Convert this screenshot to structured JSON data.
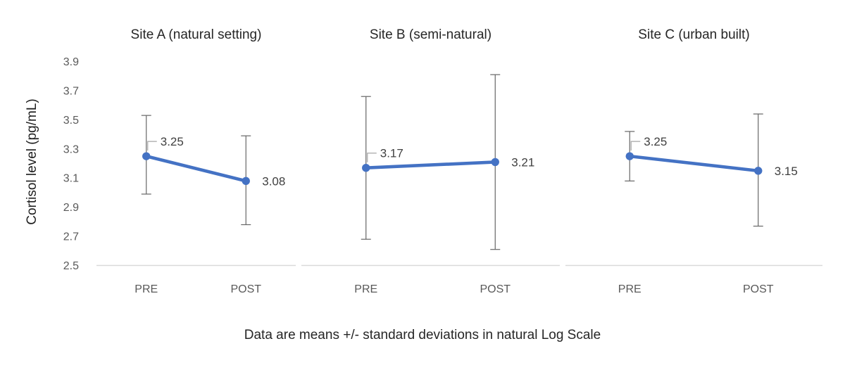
{
  "figure": {
    "y_axis_title": "Cortisol level (pg/mL)",
    "caption": "Data are means +/- standard deviations in natural Log Scale"
  },
  "chart_data": {
    "type": "line",
    "description": "Mean salivary cortisol (natural log scale) PRE vs POST with standard-deviation error bars, one panel per site",
    "ylabel": "Cortisol level (pg/mL)",
    "xlabel": "",
    "ylim": [
      2.5,
      3.9
    ],
    "ytick_labels": [
      "3.9",
      "3.7",
      "3.5",
      "3.3",
      "3.1",
      "2.9",
      "2.7",
      "2.5"
    ],
    "categories": [
      "PRE",
      "POST"
    ],
    "grid": false,
    "legend": false,
    "colors": {
      "series": "#4472C4",
      "error_bar": "#666666",
      "axis_line": "#D9D9D9",
      "tick_label": "#595959",
      "data_label": "#404040",
      "leader_line": "#A6A6A6"
    },
    "caption": "Data are means +/- standard deviations in natural Log Scale",
    "panels": [
      {
        "title": "Site A (natural setting)",
        "points": [
          {
            "category": "PRE",
            "mean": 3.25,
            "upper": 3.53,
            "lower": 2.99,
            "data_label": "3.25",
            "label_style": "callout"
          },
          {
            "category": "POST",
            "mean": 3.08,
            "upper": 3.39,
            "lower": 2.78,
            "data_label": "3.08",
            "label_style": "right"
          }
        ]
      },
      {
        "title": "Site B (semi-natural)",
        "points": [
          {
            "category": "PRE",
            "mean": 3.17,
            "upper": 3.66,
            "lower": 2.68,
            "data_label": "3.17",
            "label_style": "callout"
          },
          {
            "category": "POST",
            "mean": 3.21,
            "upper": 3.81,
            "lower": 2.61,
            "data_label": "3.21",
            "label_style": "right"
          }
        ]
      },
      {
        "title": "Site C (urban built)",
        "points": [
          {
            "category": "PRE",
            "mean": 3.25,
            "upper": 3.42,
            "lower": 3.08,
            "data_label": "3.25",
            "label_style": "callout"
          },
          {
            "category": "POST",
            "mean": 3.15,
            "upper": 3.54,
            "lower": 2.77,
            "data_label": "3.15",
            "label_style": "right"
          }
        ]
      }
    ]
  }
}
